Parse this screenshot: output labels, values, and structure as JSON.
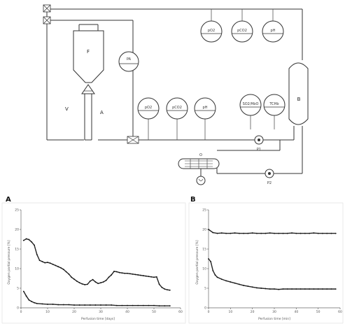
{
  "schematic": {
    "labels": {
      "reservoir": "F",
      "oxygenator": "B",
      "vein": "V",
      "artery": "A",
      "pump1": "P1",
      "pump2": "P2",
      "heat_exchanger": "O"
    },
    "gauges_top": [
      "pO2",
      "pCO2",
      "pH"
    ],
    "gauges_middle": [
      "pO2",
      "pCO2",
      "pH"
    ],
    "gauges_right": [
      "SO2/HbO",
      "TCHb"
    ],
    "pressure_gauge": "PA"
  },
  "panels": {
    "a_label": "A",
    "b_label": "B"
  },
  "chart_data": [
    {
      "type": "scatter",
      "title": "",
      "xlabel": "Perfusion time [days]",
      "ylabel": "Oxygen partial pressure [%]",
      "xlim": [
        0,
        60
      ],
      "ylim": [
        0,
        25
      ],
      "xticks": [
        0,
        10,
        20,
        30,
        40,
        50,
        60
      ],
      "yticks": [
        0,
        5,
        10,
        15,
        20,
        25
      ],
      "series": [
        {
          "x": [
            1,
            2,
            3,
            4,
            5,
            6,
            7,
            8,
            9,
            10,
            11,
            12,
            13,
            14,
            15,
            16,
            17,
            18,
            19,
            20,
            21,
            22,
            23,
            24,
            25,
            26,
            27,
            28,
            29,
            30,
            31,
            32,
            33,
            34,
            35,
            36,
            37,
            38,
            39,
            40,
            41,
            42,
            43,
            44,
            45,
            46,
            47,
            48,
            49,
            50,
            51,
            52,
            53,
            54,
            55,
            56
          ],
          "y": [
            17.2,
            17.6,
            17.4,
            16.8,
            16.0,
            13.6,
            12.1,
            11.8,
            11.5,
            11.6,
            11.4,
            11.1,
            10.8,
            10.5,
            10.2,
            9.8,
            9.2,
            8.6,
            7.8,
            7.3,
            6.8,
            6.4,
            6.1,
            5.9,
            6.0,
            6.8,
            7.2,
            6.6,
            6.2,
            6.4,
            6.6,
            7.0,
            7.8,
            8.4,
            9.3,
            9.2,
            9.0,
            8.9,
            8.8,
            8.8,
            8.7,
            8.6,
            8.5,
            8.4,
            8.3,
            8.2,
            8.1,
            8.0,
            7.9,
            7.8,
            7.9,
            6.0,
            5.2,
            4.8,
            4.6,
            4.5
          ]
        },
        {
          "x": [
            1,
            2,
            3,
            4,
            5,
            6,
            8,
            10,
            12,
            14,
            16,
            18,
            20,
            22,
            24,
            26,
            28,
            30,
            32,
            34,
            36,
            38,
            40,
            42,
            44,
            46,
            48,
            50,
            52,
            54,
            56
          ],
          "y": [
            4.2,
            3.0,
            2.0,
            1.6,
            1.3,
            1.1,
            1.0,
            0.9,
            0.9,
            0.8,
            0.8,
            0.8,
            0.7,
            0.7,
            0.7,
            0.7,
            0.7,
            0.7,
            0.7,
            0.7,
            0.6,
            0.6,
            0.6,
            0.6,
            0.6,
            0.6,
            0.6,
            0.6,
            0.5,
            0.5,
            0.5
          ]
        }
      ]
    },
    {
      "type": "scatter",
      "title": "",
      "xlabel": "Perfusion time [min]",
      "ylabel": "Oxygen partial pressure [%]",
      "xlim": [
        0,
        60
      ],
      "ylim": [
        0,
        25
      ],
      "xticks": [
        0,
        10,
        20,
        30,
        40,
        50,
        60
      ],
      "yticks": [
        0,
        5,
        10,
        15,
        20,
        25
      ],
      "series": [
        {
          "x": [
            0,
            2,
            4,
            6,
            8,
            10,
            12,
            14,
            16,
            18,
            20,
            22,
            24,
            26,
            28,
            30,
            32,
            34,
            36,
            38,
            40,
            42,
            44,
            46,
            48,
            50,
            52,
            54,
            56,
            58
          ],
          "y": [
            20.0,
            19.2,
            19.0,
            19.1,
            19.0,
            19.0,
            19.1,
            19.0,
            19.0,
            19.0,
            19.1,
            19.0,
            19.0,
            19.0,
            19.1,
            19.0,
            19.0,
            19.0,
            19.0,
            19.1,
            19.0,
            19.0,
            19.0,
            19.0,
            19.1,
            19.0,
            19.0,
            19.0,
            19.0,
            19.0
          ]
        },
        {
          "x": [
            0,
            1,
            2,
            3,
            4,
            6,
            8,
            10,
            12,
            14,
            16,
            18,
            20,
            22,
            24,
            26,
            28,
            30,
            32,
            34,
            36,
            38,
            40,
            42,
            44,
            46,
            48,
            50,
            52,
            54,
            56,
            58
          ],
          "y": [
            12.5,
            11.8,
            9.5,
            8.4,
            7.8,
            7.3,
            6.9,
            6.6,
            6.3,
            6.0,
            5.7,
            5.5,
            5.3,
            5.1,
            5.0,
            4.9,
            4.8,
            4.8,
            4.7,
            4.8,
            4.8,
            4.8,
            4.8,
            4.8,
            4.8,
            4.8,
            4.8,
            4.8,
            4.8,
            4.8,
            4.8,
            4.8
          ]
        }
      ]
    }
  ]
}
